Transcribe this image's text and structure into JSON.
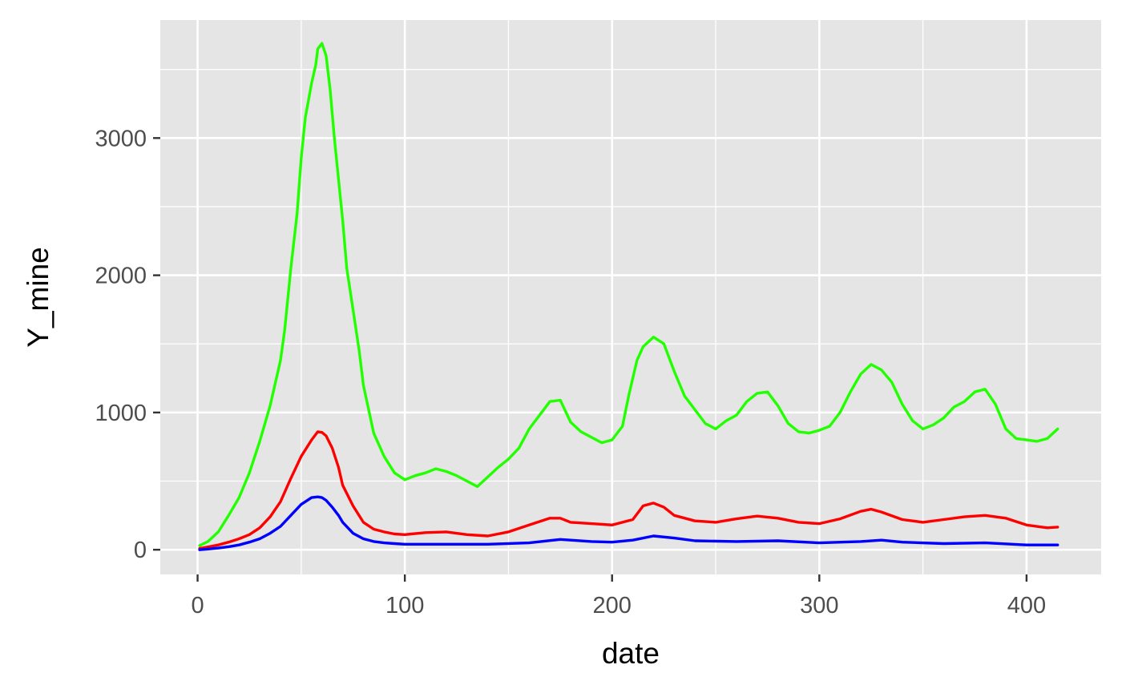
{
  "chart_data": {
    "type": "line",
    "title": "",
    "xlabel": "date",
    "ylabel": "Y_mine",
    "xlim": [
      -18,
      436
    ],
    "ylim": [
      -180,
      3860
    ],
    "x_ticks": [
      0,
      100,
      200,
      300,
      400
    ],
    "y_ticks": [
      0,
      1000,
      2000,
      3000
    ],
    "x_tick_labels": [
      "0",
      "100",
      "200",
      "300",
      "400"
    ],
    "y_tick_labels": [
      "0",
      "1000",
      "2000",
      "3000"
    ],
    "grid": true,
    "legend": "none",
    "background": "#e5e5e5",
    "gridline_color": "#ffffff",
    "series": [
      {
        "color": "#22ff00",
        "x": [
          1,
          5,
          10,
          15,
          20,
          25,
          30,
          35,
          40,
          42,
          45,
          48,
          50,
          52,
          55,
          57,
          58,
          60,
          62,
          64,
          66,
          68,
          70,
          72,
          75,
          78,
          80,
          85,
          90,
          95,
          100,
          105,
          110,
          115,
          120,
          125,
          130,
          135,
          140,
          145,
          150,
          155,
          160,
          165,
          170,
          175,
          180,
          185,
          190,
          195,
          200,
          205,
          208,
          212,
          215,
          220,
          225,
          230,
          235,
          240,
          245,
          250,
          255,
          260,
          265,
          270,
          275,
          280,
          285,
          290,
          295,
          300,
          305,
          310,
          315,
          320,
          325,
          330,
          335,
          340,
          345,
          350,
          355,
          360,
          365,
          370,
          375,
          380,
          385,
          390,
          395,
          400,
          405,
          410,
          415
        ],
        "y": [
          30,
          60,
          130,
          250,
          380,
          560,
          790,
          1050,
          1380,
          1600,
          2050,
          2450,
          2850,
          3150,
          3400,
          3530,
          3650,
          3690,
          3600,
          3350,
          3000,
          2700,
          2400,
          2050,
          1750,
          1450,
          1200,
          850,
          680,
          560,
          510,
          540,
          560,
          590,
          570,
          540,
          500,
          460,
          530,
          600,
          660,
          740,
          880,
          980,
          1080,
          1090,
          930,
          860,
          820,
          780,
          800,
          900,
          1120,
          1380,
          1480,
          1550,
          1500,
          1300,
          1120,
          1020,
          920,
          880,
          940,
          980,
          1080,
          1140,
          1150,
          1050,
          920,
          860,
          850,
          870,
          900,
          1000,
          1150,
          1280,
          1350,
          1310,
          1220,
          1060,
          940,
          880,
          910,
          960,
          1040,
          1080,
          1150,
          1170,
          1060,
          880,
          810,
          800,
          790,
          810,
          880
        ]
      },
      {
        "color": "#ff0000",
        "x": [
          1,
          5,
          10,
          15,
          20,
          25,
          30,
          35,
          40,
          45,
          50,
          55,
          58,
          60,
          62,
          65,
          68,
          70,
          75,
          80,
          85,
          90,
          95,
          100,
          110,
          120,
          130,
          140,
          150,
          160,
          170,
          175,
          180,
          190,
          200,
          210,
          215,
          220,
          225,
          230,
          240,
          250,
          260,
          270,
          280,
          290,
          300,
          310,
          320,
          325,
          330,
          340,
          350,
          360,
          370,
          380,
          390,
          400,
          410,
          415
        ],
        "y": [
          10,
          20,
          35,
          55,
          80,
          110,
          160,
          240,
          350,
          520,
          680,
          800,
          860,
          855,
          830,
          740,
          600,
          470,
          320,
          200,
          150,
          130,
          115,
          110,
          125,
          130,
          110,
          100,
          130,
          180,
          230,
          230,
          200,
          190,
          180,
          220,
          320,
          340,
          310,
          250,
          210,
          200,
          225,
          245,
          230,
          200,
          190,
          225,
          280,
          295,
          275,
          220,
          200,
          220,
          240,
          250,
          230,
          180,
          160,
          165
        ]
      },
      {
        "color": "#0000ff",
        "x": [
          1,
          5,
          10,
          15,
          20,
          25,
          30,
          35,
          40,
          45,
          50,
          55,
          58,
          60,
          62,
          65,
          68,
          70,
          75,
          80,
          85,
          90,
          95,
          100,
          120,
          140,
          160,
          175,
          190,
          200,
          210,
          220,
          230,
          240,
          260,
          280,
          300,
          320,
          330,
          340,
          360,
          380,
          400,
          415
        ],
        "y": [
          0,
          5,
          12,
          22,
          35,
          55,
          80,
          120,
          170,
          250,
          330,
          380,
          385,
          380,
          360,
          310,
          250,
          200,
          120,
          80,
          60,
          50,
          45,
          40,
          40,
          40,
          50,
          75,
          60,
          55,
          70,
          100,
          85,
          65,
          60,
          65,
          50,
          60,
          70,
          55,
          45,
          50,
          35,
          35
        ]
      }
    ]
  }
}
